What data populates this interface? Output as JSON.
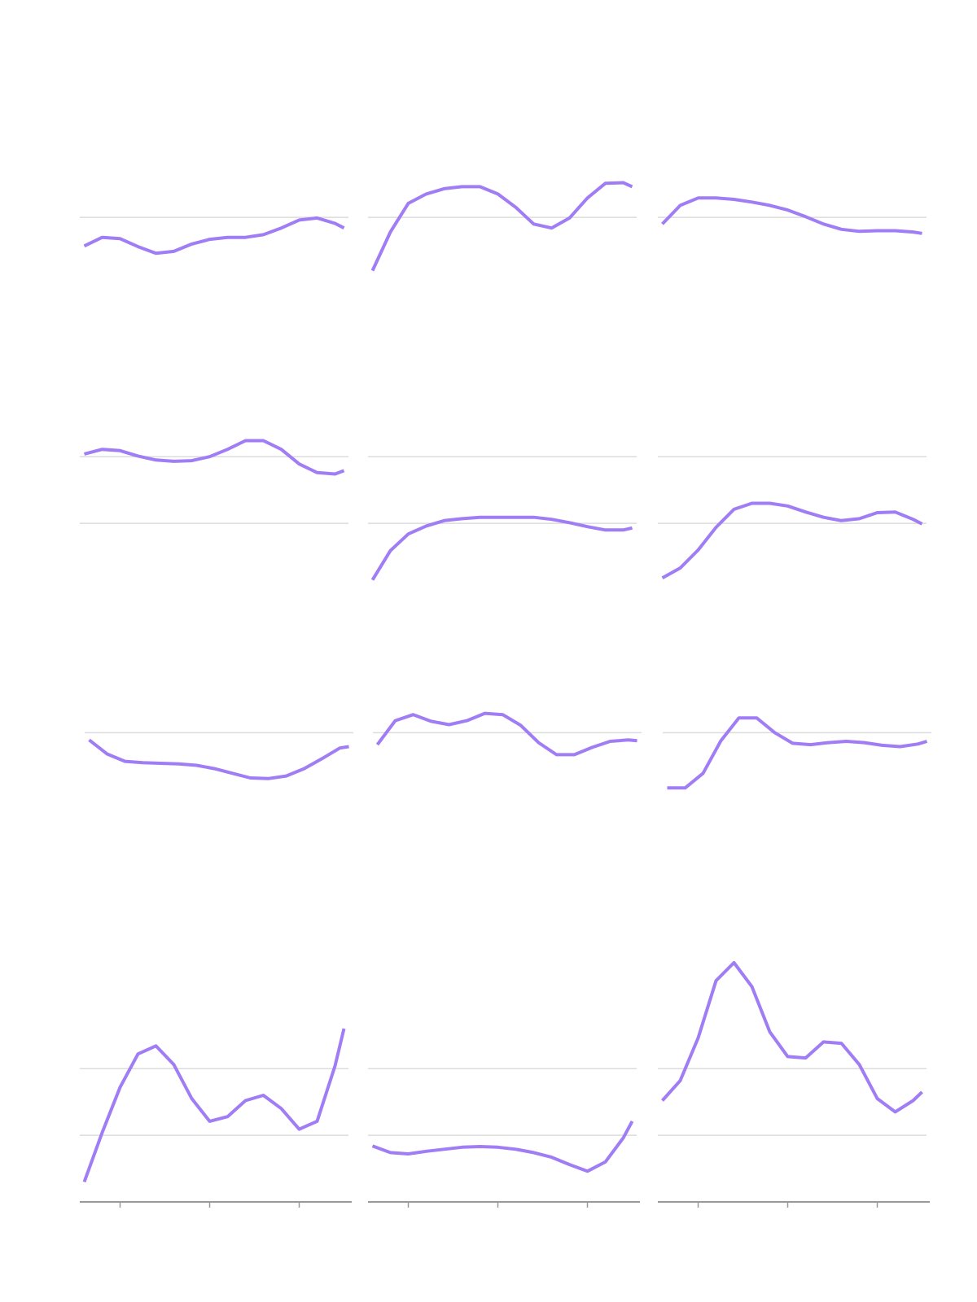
{
  "chart_data": [
    {
      "type": "line",
      "color": "#a07cf5",
      "xlim": [
        0.55,
        3.55
      ],
      "ylim": [
        0,
        4.2
      ],
      "yticks": [
        1
      ],
      "x": [
        0.6,
        0.8,
        1.0,
        1.2,
        1.4,
        1.6,
        1.8,
        2.0,
        2.2,
        2.4,
        2.6,
        2.8,
        3.0,
        3.2,
        3.4,
        3.5
      ],
      "values": [
        0.57,
        0.7,
        0.68,
        0.56,
        0.46,
        0.49,
        0.6,
        0.67,
        0.7,
        0.7,
        0.74,
        0.84,
        0.96,
        0.99,
        0.91,
        0.84
      ]
    },
    {
      "type": "line",
      "color": "#a07cf5",
      "xlim": [
        0.55,
        3.55
      ],
      "ylim": [
        0,
        4.2
      ],
      "yticks": [
        1
      ],
      "x": [
        0.6,
        0.8,
        1.0,
        1.2,
        1.4,
        1.6,
        1.8,
        2.0,
        2.2,
        2.4,
        2.6,
        2.8,
        3.0,
        3.2,
        3.4,
        3.5
      ],
      "values": [
        0.2,
        0.78,
        1.21,
        1.35,
        1.43,
        1.46,
        1.46,
        1.35,
        1.15,
        0.9,
        0.84,
        0.99,
        1.29,
        1.51,
        1.52,
        1.46
      ]
    },
    {
      "type": "line",
      "color": "#a07cf5",
      "xlim": [
        0.55,
        3.55
      ],
      "ylim": [
        0,
        4.2
      ],
      "yticks": [
        1
      ],
      "x": [
        0.6,
        0.8,
        1.0,
        1.2,
        1.4,
        1.6,
        1.8,
        2.0,
        2.2,
        2.4,
        2.6,
        2.8,
        3.0,
        3.2,
        3.4,
        3.5
      ],
      "values": [
        0.9,
        1.18,
        1.29,
        1.29,
        1.27,
        1.23,
        1.18,
        1.11,
        1.01,
        0.9,
        0.82,
        0.79,
        0.8,
        0.8,
        0.78,
        0.76
      ]
    },
    {
      "type": "line",
      "color": "#a07cf5",
      "xlim": [
        0.55,
        3.55
      ],
      "ylim": [
        0,
        4.2
      ],
      "yticks": [
        1,
        2
      ],
      "x": [
        0.6,
        0.8,
        1.0,
        1.2,
        1.4,
        1.6,
        1.8,
        2.0,
        2.2,
        2.4,
        2.6,
        2.8,
        3.0,
        3.2,
        3.4,
        3.5
      ],
      "values": [
        2.04,
        2.11,
        2.09,
        2.01,
        1.95,
        1.93,
        1.94,
        2.0,
        2.11,
        2.24,
        2.24,
        2.11,
        1.89,
        1.76,
        1.74,
        1.79
      ]
    },
    {
      "type": "line",
      "color": "#a07cf5",
      "xlim": [
        0.55,
        3.55
      ],
      "ylim": [
        0,
        4.2
      ],
      "yticks": [
        1,
        2
      ],
      "x": [
        0.6,
        0.8,
        1.0,
        1.2,
        1.4,
        1.6,
        1.8,
        2.0,
        2.2,
        2.4,
        2.6,
        2.8,
        3.0,
        3.2,
        3.4,
        3.5
      ],
      "values": [
        0.15,
        0.59,
        0.84,
        0.96,
        1.04,
        1.07,
        1.09,
        1.09,
        1.09,
        1.09,
        1.06,
        1.01,
        0.95,
        0.9,
        0.9,
        0.93
      ]
    },
    {
      "type": "line",
      "color": "#a07cf5",
      "xlim": [
        0.55,
        3.55
      ],
      "ylim": [
        0,
        4.2
      ],
      "yticks": [
        1,
        2
      ],
      "x": [
        0.6,
        0.8,
        1.0,
        1.2,
        1.4,
        1.6,
        1.8,
        2.0,
        2.2,
        2.4,
        2.6,
        2.8,
        3.0,
        3.2,
        3.4,
        3.5
      ],
      "values": [
        0.18,
        0.33,
        0.6,
        0.94,
        1.21,
        1.3,
        1.3,
        1.26,
        1.17,
        1.09,
        1.04,
        1.07,
        1.16,
        1.17,
        1.06,
        0.99
      ]
    },
    {
      "type": "line",
      "color": "#a07cf5",
      "xlim": [
        0.55,
        3.55
      ],
      "ylim": [
        0,
        4.2
      ],
      "yticks": [
        2.45
      ],
      "x": [
        0.6,
        0.8,
        1.0,
        1.2,
        1.4,
        1.6,
        1.8,
        2.0,
        2.2,
        2.4,
        2.6,
        2.8,
        3.0,
        3.2,
        3.4,
        3.5
      ],
      "values": [
        2.34,
        2.13,
        2.02,
        2.0,
        1.99,
        1.98,
        1.96,
        1.91,
        1.84,
        1.77,
        1.76,
        1.8,
        1.91,
        2.06,
        2.22,
        2.24
      ]
    },
    {
      "type": "line",
      "color": "#a07cf5",
      "xlim": [
        0.55,
        3.55
      ],
      "ylim": [
        0,
        4.2
      ],
      "yticks": [
        2.45
      ],
      "x": [
        0.6,
        0.8,
        1.0,
        1.2,
        1.4,
        1.6,
        1.8,
        2.0,
        2.2,
        2.4,
        2.6,
        2.8,
        3.0,
        3.2,
        3.4,
        3.5
      ],
      "values": [
        2.27,
        2.63,
        2.72,
        2.62,
        2.57,
        2.63,
        2.74,
        2.72,
        2.56,
        2.3,
        2.12,
        2.12,
        2.23,
        2.32,
        2.34,
        2.33
      ]
    },
    {
      "type": "line",
      "color": "#a07cf5",
      "xlim": [
        0.55,
        3.55
      ],
      "ylim": [
        0,
        4.2
      ],
      "yticks": [
        2.45
      ],
      "x": [
        0.6,
        0.8,
        1.0,
        1.2,
        1.4,
        1.6,
        1.8,
        2.0,
        2.2,
        2.4,
        2.6,
        2.8,
        3.0,
        3.2,
        3.4,
        3.5
      ],
      "values": [
        1.62,
        1.62,
        1.84,
        2.33,
        2.67,
        2.67,
        2.45,
        2.29,
        2.27,
        2.3,
        2.32,
        2.3,
        2.26,
        2.24,
        2.28,
        2.32
      ]
    },
    {
      "type": "line",
      "color": "#a07cf5",
      "xlim": [
        0.55,
        3.55
      ],
      "ylim": [
        0,
        4.2
      ],
      "yticks": [
        1,
        2
      ],
      "xticks": [
        1,
        2,
        3
      ],
      "x": [
        0.6,
        0.8,
        1.0,
        1.2,
        1.4,
        1.6,
        1.8,
        2.0,
        2.2,
        2.4,
        2.6,
        2.8,
        3.0,
        3.2,
        3.4,
        3.5
      ],
      "values": [
        0.3,
        1.04,
        1.72,
        2.22,
        2.34,
        2.06,
        1.55,
        1.21,
        1.28,
        1.52,
        1.6,
        1.4,
        1.09,
        1.21,
        2.04,
        2.6
      ]
    },
    {
      "type": "line",
      "color": "#a07cf5",
      "xlim": [
        0.55,
        3.55
      ],
      "ylim": [
        0,
        4.2
      ],
      "yticks": [
        1,
        2
      ],
      "xticks": [
        1,
        2,
        3
      ],
      "x": [
        0.6,
        0.8,
        1.0,
        1.2,
        1.4,
        1.6,
        1.8,
        2.0,
        2.2,
        2.4,
        2.6,
        2.8,
        3.0,
        3.2,
        3.4,
        3.5
      ],
      "values": [
        0.84,
        0.74,
        0.72,
        0.76,
        0.79,
        0.82,
        0.83,
        0.82,
        0.79,
        0.74,
        0.67,
        0.56,
        0.46,
        0.6,
        0.96,
        1.21
      ]
    },
    {
      "type": "line",
      "color": "#a07cf5",
      "xlim": [
        0.55,
        3.55
      ],
      "ylim": [
        0,
        4.2
      ],
      "yticks": [
        1,
        2
      ],
      "xticks": [
        1,
        2,
        3
      ],
      "x": [
        0.6,
        0.8,
        1.0,
        1.2,
        1.4,
        1.6,
        1.8,
        2.0,
        2.2,
        2.4,
        2.6,
        2.8,
        3.0,
        3.2,
        3.4,
        3.5
      ],
      "values": [
        1.52,
        1.82,
        2.46,
        3.32,
        3.59,
        3.23,
        2.55,
        2.18,
        2.16,
        2.4,
        2.38,
        2.06,
        1.55,
        1.35,
        1.52,
        1.65
      ]
    }
  ]
}
